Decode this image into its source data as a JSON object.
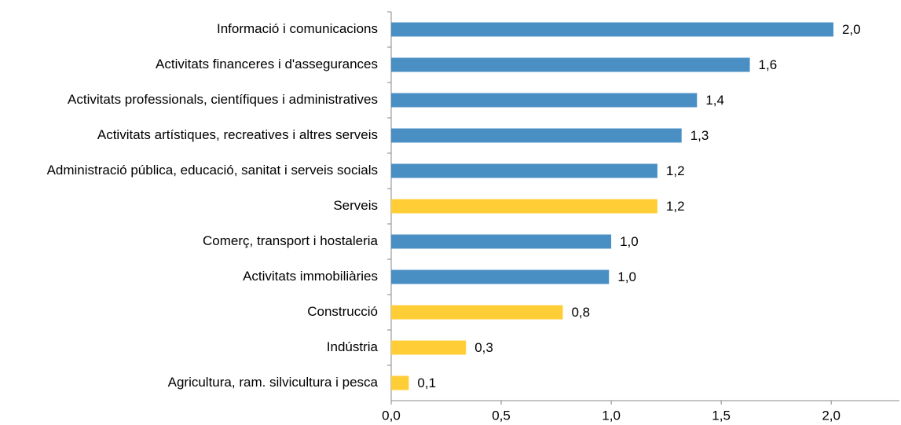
{
  "chart_data": {
    "type": "hbar",
    "categories": [
      "Informació i comunicacions",
      "Activitats financeres i d'assegurances",
      "Activitats professionals, científiques i administratives",
      "Activitats artístiques, recreatives i altres serveis",
      "Administració pública, educació, sanitat i serveis socials",
      "Serveis",
      "Comerç, transport i hostaleria",
      "Activitats immobiliàries",
      "Construcció",
      "Indústria",
      "Agricultura, ram. silvicultura i pesca"
    ],
    "values": [
      2.01,
      1.63,
      1.39,
      1.32,
      1.21,
      1.21,
      1.0,
      0.99,
      0.78,
      0.34,
      0.08
    ],
    "value_labels": [
      "2,0",
      "1,6",
      "1,4",
      "1,3",
      "1,2",
      "1,2",
      "1,0",
      "1,0",
      "0,8",
      "0,3",
      "0,1"
    ],
    "colors": [
      "#4a8fc4",
      "#4a8fc4",
      "#4a8fc4",
      "#4a8fc4",
      "#4a8fc4",
      "#ffcd35",
      "#4a8fc4",
      "#4a8fc4",
      "#ffcd35",
      "#ffcd35",
      "#ffcd35"
    ],
    "xlim": [
      0,
      2.31
    ],
    "xticks": [
      {
        "value": 0,
        "label": "0,0"
      },
      {
        "value": 0.5,
        "label": "0,5"
      },
      {
        "value": 1,
        "label": "1,0"
      },
      {
        "value": 1.5,
        "label": "1,5"
      },
      {
        "value": 2,
        "label": "2,0"
      }
    ]
  }
}
